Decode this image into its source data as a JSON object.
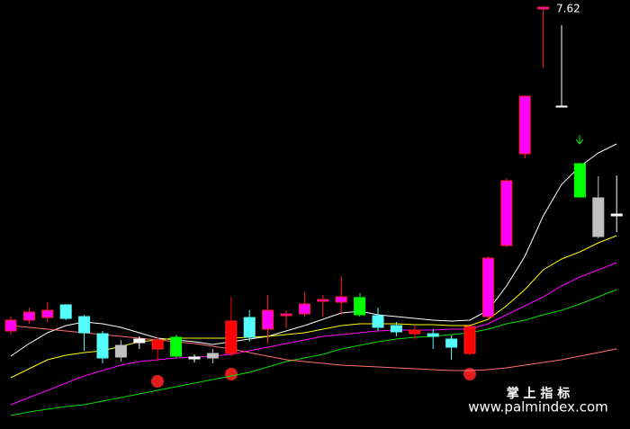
{
  "chart_data": {
    "type": "candlestick",
    "ylim": [
      2.92,
      7.69
    ],
    "candles": {
      "open": [
        4.01,
        4.13,
        4.16,
        4.3,
        4.17,
        3.98,
        3.85,
        3.92,
        3.81,
        3.94,
        3.72,
        3.76,
        3.76,
        4.16,
        4.03,
        4.18,
        4.2,
        4.34,
        4.33,
        4.38,
        4.18,
        4.07,
        3.98,
        3.98,
        3.92,
        3.76,
        4.17,
        4.96,
        5.98,
        7.59,
        6.51,
        5.87,
        5.49,
        5.31
      ],
      "high": [
        4.17,
        4.27,
        4.33,
        4.31,
        4.19,
        4.01,
        3.91,
        3.95,
        3.94,
        3.95,
        3.75,
        3.81,
        4.39,
        4.24,
        4.41,
        4.24,
        4.44,
        4.41,
        4.62,
        4.39,
        4.27,
        4.11,
        4.07,
        4.03,
        3.96,
        4.07,
        4.84,
        5.71,
        6.63,
        7.62,
        7.41,
        5.88,
        5.73,
        5.74
      ],
      "low": [
        3.97,
        4.09,
        4.11,
        4.13,
        3.79,
        3.65,
        3.67,
        3.81,
        3.69,
        3.71,
        3.66,
        3.65,
        3.73,
        3.89,
        3.87,
        4.04,
        4.17,
        4.17,
        4.19,
        4.17,
        4.01,
        3.95,
        3.91,
        3.81,
        3.69,
        3.74,
        4.14,
        4.94,
        5.93,
        6.94,
        6.5,
        5.49,
        5.04,
        5.11
      ],
      "close": [
        4.13,
        4.22,
        4.24,
        4.15,
        3.99,
        3.71,
        3.72,
        3.88,
        3.91,
        3.73,
        3.7,
        3.71,
        4.12,
        3.94,
        4.24,
        4.2,
        4.31,
        4.36,
        4.39,
        4.19,
        4.05,
        4.0,
        4.02,
        3.95,
        3.83,
        4.06,
        4.82,
        5.68,
        6.62,
        7.61,
        6.5,
        5.5,
        5.06,
        5.29
      ],
      "colors": [
        "#ff00ff",
        "#ff00ff",
        "#ff00ff",
        "#54fcfc",
        "#54fcfc",
        "#54fcfc",
        "#c0c0c0",
        "#ffffff",
        "#ff0000",
        "#00ff00",
        "#ffffff",
        "#c0c0c0",
        "#ff0000",
        "#54fcfc",
        "#ff00ff",
        "#ff00ff",
        "#ff00ff",
        "#ff00ff",
        "#ff00ff",
        "#00ff00",
        "#54fcfc",
        "#54fcfc",
        "#ff0000",
        "#54fcfc",
        "#54fcfc",
        "#ff0000",
        "#ff00ff",
        "#ff00ff",
        "#ff00ff",
        "#ff00ff",
        "#ffffff",
        "#00ff00",
        "#c0c0c0",
        "#ffffff"
      ]
    },
    "lines": [
      {
        "color": "#ffffff",
        "values": [
          3.73,
          3.87,
          3.99,
          4.07,
          4.11,
          4.09,
          4.05,
          3.99,
          3.93,
          3.91,
          3.89,
          3.86,
          3.89,
          3.92,
          3.95,
          4.01,
          4.07,
          4.14,
          4.21,
          4.23,
          4.19,
          4.17,
          4.15,
          4.13,
          4.12,
          4.13,
          4.24,
          4.51,
          4.84,
          5.29,
          5.64,
          5.84,
          5.99,
          6.09
        ]
      },
      {
        "color": "#ffff00",
        "values": [
          3.49,
          3.59,
          3.69,
          3.74,
          3.77,
          3.79,
          3.84,
          3.89,
          3.91,
          3.93,
          3.93,
          3.93,
          3.93,
          3.94,
          3.95,
          3.97,
          3.99,
          4.03,
          4.07,
          4.09,
          4.09,
          4.09,
          4.08,
          4.08,
          4.07,
          4.07,
          4.14,
          4.29,
          4.47,
          4.69,
          4.81,
          4.89,
          4.99,
          5.07
        ]
      },
      {
        "color": "#ff00ff",
        "values": [
          3.19,
          3.27,
          3.35,
          3.43,
          3.51,
          3.57,
          3.63,
          3.67,
          3.69,
          3.71,
          3.72,
          3.73,
          3.75,
          3.79,
          3.83,
          3.87,
          3.91,
          3.95,
          3.97,
          3.99,
          4.01,
          4.02,
          4.02,
          4.02,
          4.03,
          4.03,
          4.09,
          4.19,
          4.29,
          4.39,
          4.51,
          4.61,
          4.69,
          4.77
        ]
      },
      {
        "color": "#00e000",
        "values": [
          3.07,
          3.11,
          3.14,
          3.17,
          3.19,
          3.23,
          3.27,
          3.31,
          3.35,
          3.39,
          3.43,
          3.47,
          3.51,
          3.55,
          3.61,
          3.67,
          3.71,
          3.75,
          3.81,
          3.85,
          3.89,
          3.92,
          3.94,
          3.95,
          3.97,
          3.99,
          4.03,
          4.09,
          4.13,
          4.19,
          4.24,
          4.31,
          4.39,
          4.47
        ]
      },
      {
        "color": "#ff7070",
        "values": [
          4.07,
          4.05,
          4.03,
          4.01,
          3.99,
          3.97,
          3.95,
          3.93,
          3.91,
          3.89,
          3.87,
          3.84,
          3.81,
          3.77,
          3.73,
          3.69,
          3.67,
          3.65,
          3.63,
          3.62,
          3.61,
          3.6,
          3.59,
          3.58,
          3.57,
          3.57,
          3.58,
          3.6,
          3.63,
          3.66,
          3.69,
          3.73,
          3.77,
          3.81
        ]
      }
    ]
  },
  "watermark": {
    "title": "掌 上 指 标",
    "url": "www.palmindex.com"
  }
}
